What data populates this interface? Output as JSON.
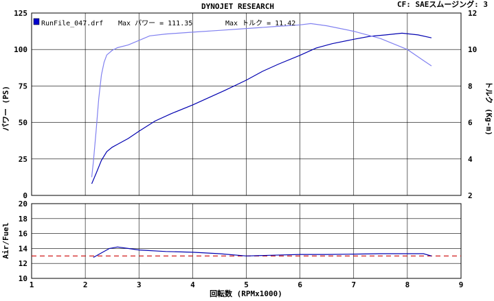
{
  "header": {
    "title": "DYNOJET  RESEARCH",
    "cf": "CF: SAE",
    "smoothing": "スムージング: 3"
  },
  "legend": {
    "run_label": "RunFile_047.drf",
    "max_power": "Max パワー = 111.35",
    "max_torque": "Max トルク = 11.42",
    "marker_color": "#0000cc"
  },
  "colors": {
    "power": "#0000b0",
    "torque": "#8080f0",
    "afr": "#0000b0",
    "afr_ref": "#cc0000",
    "frame": "#000000"
  },
  "chart_data": [
    {
      "type": "line",
      "title": "DYNOJET  RESEARCH",
      "xlabel": "回転数 (RPMx1000)",
      "ylabel": "パワー (PS)",
      "y2label": "トルク (Kg-m)",
      "xlim": [
        1,
        9
      ],
      "ylim": [
        0,
        125
      ],
      "y2lim": [
        2,
        12
      ],
      "x_ticks": [
        "1",
        "2",
        "3",
        "4",
        "5",
        "6",
        "7",
        "8",
        "9"
      ],
      "y_ticks": [
        "0",
        "25",
        "50",
        "75",
        "100",
        "125"
      ],
      "y2_ticks": [
        "2",
        "4",
        "6",
        "8",
        "10",
        "12"
      ],
      "grid": true,
      "series": [
        {
          "key": "power",
          "axis": "left",
          "x": [
            2.12,
            2.2,
            2.3,
            2.4,
            2.5,
            2.6,
            2.8,
            3.0,
            3.3,
            3.6,
            4.0,
            4.3,
            4.6,
            5.0,
            5.3,
            5.6,
            6.0,
            6.3,
            6.6,
            7.0,
            7.3,
            7.6,
            7.9,
            8.2,
            8.45
          ],
          "values": [
            8,
            15,
            24,
            30,
            33,
            35,
            39,
            44,
            51,
            56,
            62,
            67,
            72,
            79,
            85,
            90,
            96,
            101,
            104,
            107,
            109,
            110,
            111.2,
            110,
            108
          ]
        },
        {
          "key": "torque",
          "axis": "right",
          "x": [
            2.12,
            2.15,
            2.2,
            2.25,
            2.3,
            2.35,
            2.4,
            2.5,
            2.6,
            2.8,
            3.0,
            3.2,
            3.5,
            4.0,
            4.5,
            5.0,
            5.5,
            6.0,
            6.2,
            6.5,
            7.0,
            7.5,
            8.0,
            8.3,
            8.45
          ],
          "values": [
            3.0,
            3.8,
            5.5,
            7.3,
            8.6,
            9.3,
            9.7,
            9.95,
            10.1,
            10.25,
            10.5,
            10.75,
            10.85,
            10.95,
            11.05,
            11.15,
            11.25,
            11.35,
            11.42,
            11.3,
            11.0,
            10.6,
            10.0,
            9.4,
            9.1
          ]
        }
      ]
    },
    {
      "type": "line",
      "ylabel": "Air/Fuel",
      "xlim": [
        1,
        9
      ],
      "ylim": [
        10,
        20
      ],
      "x_ticks": [
        "1",
        "2",
        "3",
        "4",
        "5",
        "6",
        "7",
        "8",
        "9"
      ],
      "y_ticks": [
        "10",
        "12",
        "14",
        "16",
        "18",
        "20"
      ],
      "grid": true,
      "reference": 13.0,
      "series": [
        {
          "key": "afr",
          "x": [
            2.15,
            2.3,
            2.45,
            2.6,
            2.8,
            3.0,
            3.5,
            4.0,
            4.5,
            5.0,
            5.5,
            6.0,
            6.5,
            7.0,
            7.5,
            8.0,
            8.3,
            8.45
          ],
          "values": [
            12.8,
            13.4,
            14.0,
            14.2,
            14.0,
            13.8,
            13.6,
            13.5,
            13.3,
            13.0,
            13.1,
            13.2,
            13.2,
            13.25,
            13.3,
            13.3,
            13.3,
            13.0
          ]
        }
      ]
    }
  ]
}
